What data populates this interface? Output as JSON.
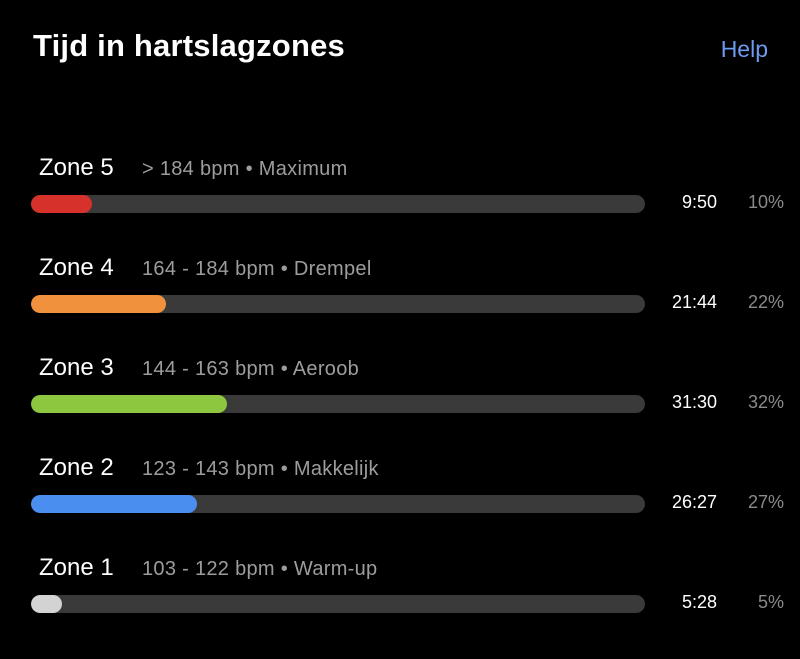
{
  "header": {
    "title": "Tijd in hartslagzones",
    "help_label": "Help"
  },
  "colors": {
    "background": "#000000",
    "track": "#3a3a3a",
    "help_link": "#6d9bf0"
  },
  "zones": [
    {
      "label": "Zone 5",
      "description": "> 184 bpm • Maximum",
      "time": "9:50",
      "percent_label": "10%",
      "fraction": 0.1,
      "color": "#d6322b"
    },
    {
      "label": "Zone 4",
      "description": "164 - 184 bpm • Drempel",
      "time": "21:44",
      "percent_label": "22%",
      "fraction": 0.22,
      "color": "#f0913e"
    },
    {
      "label": "Zone 3",
      "description": "144 - 163 bpm • Aeroob",
      "time": "31:30",
      "percent_label": "32%",
      "fraction": 0.32,
      "color": "#8cc73f"
    },
    {
      "label": "Zone 2",
      "description": "123 - 143 bpm • Makkelijk",
      "time": "26:27",
      "percent_label": "27%",
      "fraction": 0.27,
      "color": "#4a8ef0"
    },
    {
      "label": "Zone 1",
      "description": "103 - 122 bpm • Warm-up",
      "time": "5:28",
      "percent_label": "5%",
      "fraction": 0.05,
      "color": "#d3d3d3"
    }
  ]
}
